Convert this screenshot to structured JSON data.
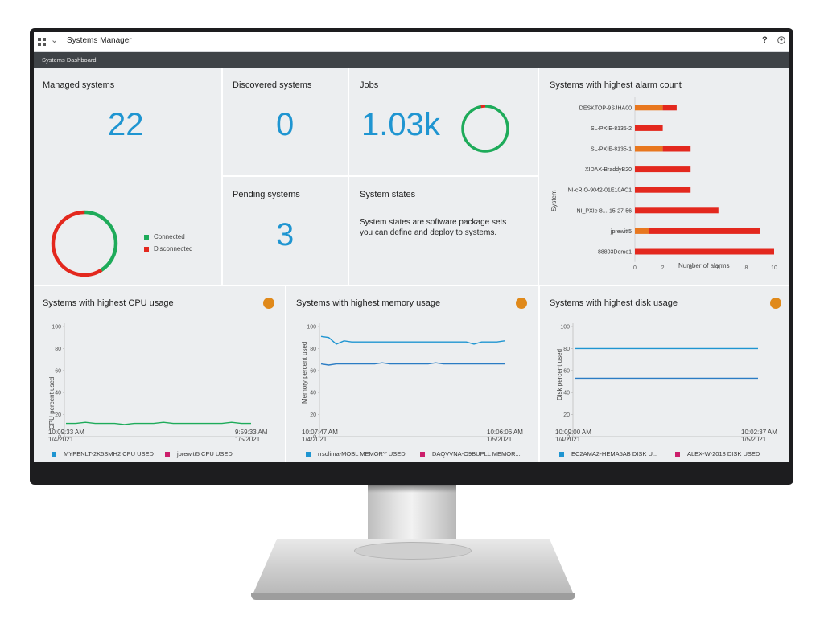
{
  "app": {
    "title": "Systems Manager",
    "breadcrumb": "Systems Dashboard",
    "help_label": "?",
    "icons": {
      "menu": "grid-icon",
      "dropdown": "chevron-down-icon",
      "user": "user-icon"
    }
  },
  "colors": {
    "accent": "#1f95d1",
    "connected": "#1eab5a",
    "disconnected": "#e3281e",
    "warning": "#e8771f",
    "bell": "#e0891a"
  },
  "managed": {
    "title": "Managed systems",
    "count": "22",
    "legend": [
      {
        "label": "Connected",
        "color": "#1eab5a",
        "value": 9
      },
      {
        "label": "Disconnected",
        "color": "#e3281e",
        "value": 13
      }
    ]
  },
  "discovered": {
    "title": "Discovered systems",
    "count": "0"
  },
  "pending": {
    "title": "Pending systems",
    "count": "3"
  },
  "jobs": {
    "title": "Jobs",
    "count": "1.03k",
    "success_fraction": 0.97
  },
  "states": {
    "title": "System states",
    "description": "System states are software package sets you can define and deploy to systems."
  },
  "alarms": {
    "title": "Systems with highest alarm count",
    "ylabel": "System",
    "xlabel": "Number of alarms"
  },
  "cpu": {
    "title": "Systems with highest CPU usage",
    "ylabel": "CPU percent used",
    "x_start": [
      "10:09:33 AM",
      "1/4/2021"
    ],
    "x_end": [
      "9:59:33 AM",
      "1/5/2021"
    ],
    "legend": [
      {
        "label": "MYPENLT-2K5SMH2 CPU USED",
        "color": "#1f95d1"
      },
      {
        "label": "jprewitt5 CPU USED",
        "color": "#cc1f6b"
      }
    ]
  },
  "memory": {
    "title": "Systems with highest memory usage",
    "ylabel": "Memory percent used",
    "x_start": [
      "10:07:47 AM",
      "1/4/2021"
    ],
    "x_end": [
      "10:06:06 AM",
      "1/5/2021"
    ],
    "legend": [
      {
        "label": "rrsolima-MOBL MEMORY USED",
        "color": "#1f95d1"
      },
      {
        "label": "DAQVVNA-O9BUPLL MEMOR...",
        "color": "#cc1f6b"
      }
    ]
  },
  "disk": {
    "title": "Systems with highest disk usage",
    "ylabel": "Disk percent used",
    "x_start": [
      "10:09:00 AM",
      "1/4/2021"
    ],
    "x_end": [
      "10:02:37 AM",
      "1/5/2021"
    ],
    "legend": [
      {
        "label": "EC2AMAZ-HEMA5AB DISK U...",
        "color": "#1f95d1"
      },
      {
        "label": "ALEX-W-2018 DISK USED",
        "color": "#cc1f6b"
      }
    ]
  },
  "chart_data": [
    {
      "type": "bar",
      "orientation": "horizontal",
      "stacked": true,
      "title": "Systems with highest alarm count",
      "xlabel": "Number of alarms",
      "ylabel": "System",
      "xlim": [
        0,
        10
      ],
      "xticks": [
        0,
        2,
        4,
        6,
        8,
        10
      ],
      "categories": [
        "DESKTOP-9SJHA00",
        "SL-PXIE-8135-2",
        "SL-PXIE-8135-1",
        "XIDAX-BraddyB20",
        "NI-cRIO-9042-01E10AC1",
        "NI_PXIe-8...-15-27-56",
        "jprewitt5",
        "88803Demo1"
      ],
      "series": [
        {
          "color": "#e8771f",
          "values": [
            2,
            0,
            2,
            0,
            0,
            0,
            1,
            0
          ]
        },
        {
          "color": "#e3281e",
          "values": [
            1,
            2,
            2,
            4,
            4,
            6,
            8,
            10
          ]
        }
      ]
    },
    {
      "type": "line",
      "title": "Systems with highest CPU usage",
      "ylabel": "CPU percent used",
      "ylim": [
        0,
        100
      ],
      "yticks": [
        0,
        20,
        40,
        60,
        80,
        100
      ],
      "series": [
        {
          "color": "#1eab5a",
          "y": [
            12,
            12,
            13,
            12,
            12,
            12,
            11,
            12,
            12,
            12,
            13,
            12,
            12,
            12,
            12,
            12,
            12,
            13,
            12,
            12
          ]
        }
      ]
    },
    {
      "type": "line",
      "title": "Systems with highest memory usage",
      "ylabel": "Memory percent used",
      "ylim": [
        0,
        100
      ],
      "yticks": [
        0,
        20,
        40,
        60,
        80,
        100
      ],
      "series": [
        {
          "color": "#1f95d1",
          "y": [
            91,
            90,
            84,
            87,
            86,
            86,
            86,
            86,
            86,
            86,
            86,
            86,
            86,
            86,
            86,
            86,
            86,
            86,
            86,
            86,
            84,
            86,
            86,
            86,
            87
          ]
        },
        {
          "color": "#2b7cc4",
          "y": [
            66,
            65,
            66,
            66,
            66,
            66,
            66,
            66,
            67,
            66,
            66,
            66,
            66,
            66,
            66,
            67,
            66,
            66,
            66,
            66,
            66,
            66,
            66,
            66,
            66
          ]
        }
      ]
    },
    {
      "type": "line",
      "title": "Systems with highest disk usage",
      "ylabel": "Disk percent used",
      "ylim": [
        0,
        100
      ],
      "yticks": [
        0,
        20,
        40,
        60,
        80,
        100
      ],
      "series": [
        {
          "color": "#1f95d1",
          "y": [
            80,
            80
          ]
        },
        {
          "color": "#2b7cc4",
          "y": [
            53,
            53
          ]
        }
      ]
    }
  ]
}
